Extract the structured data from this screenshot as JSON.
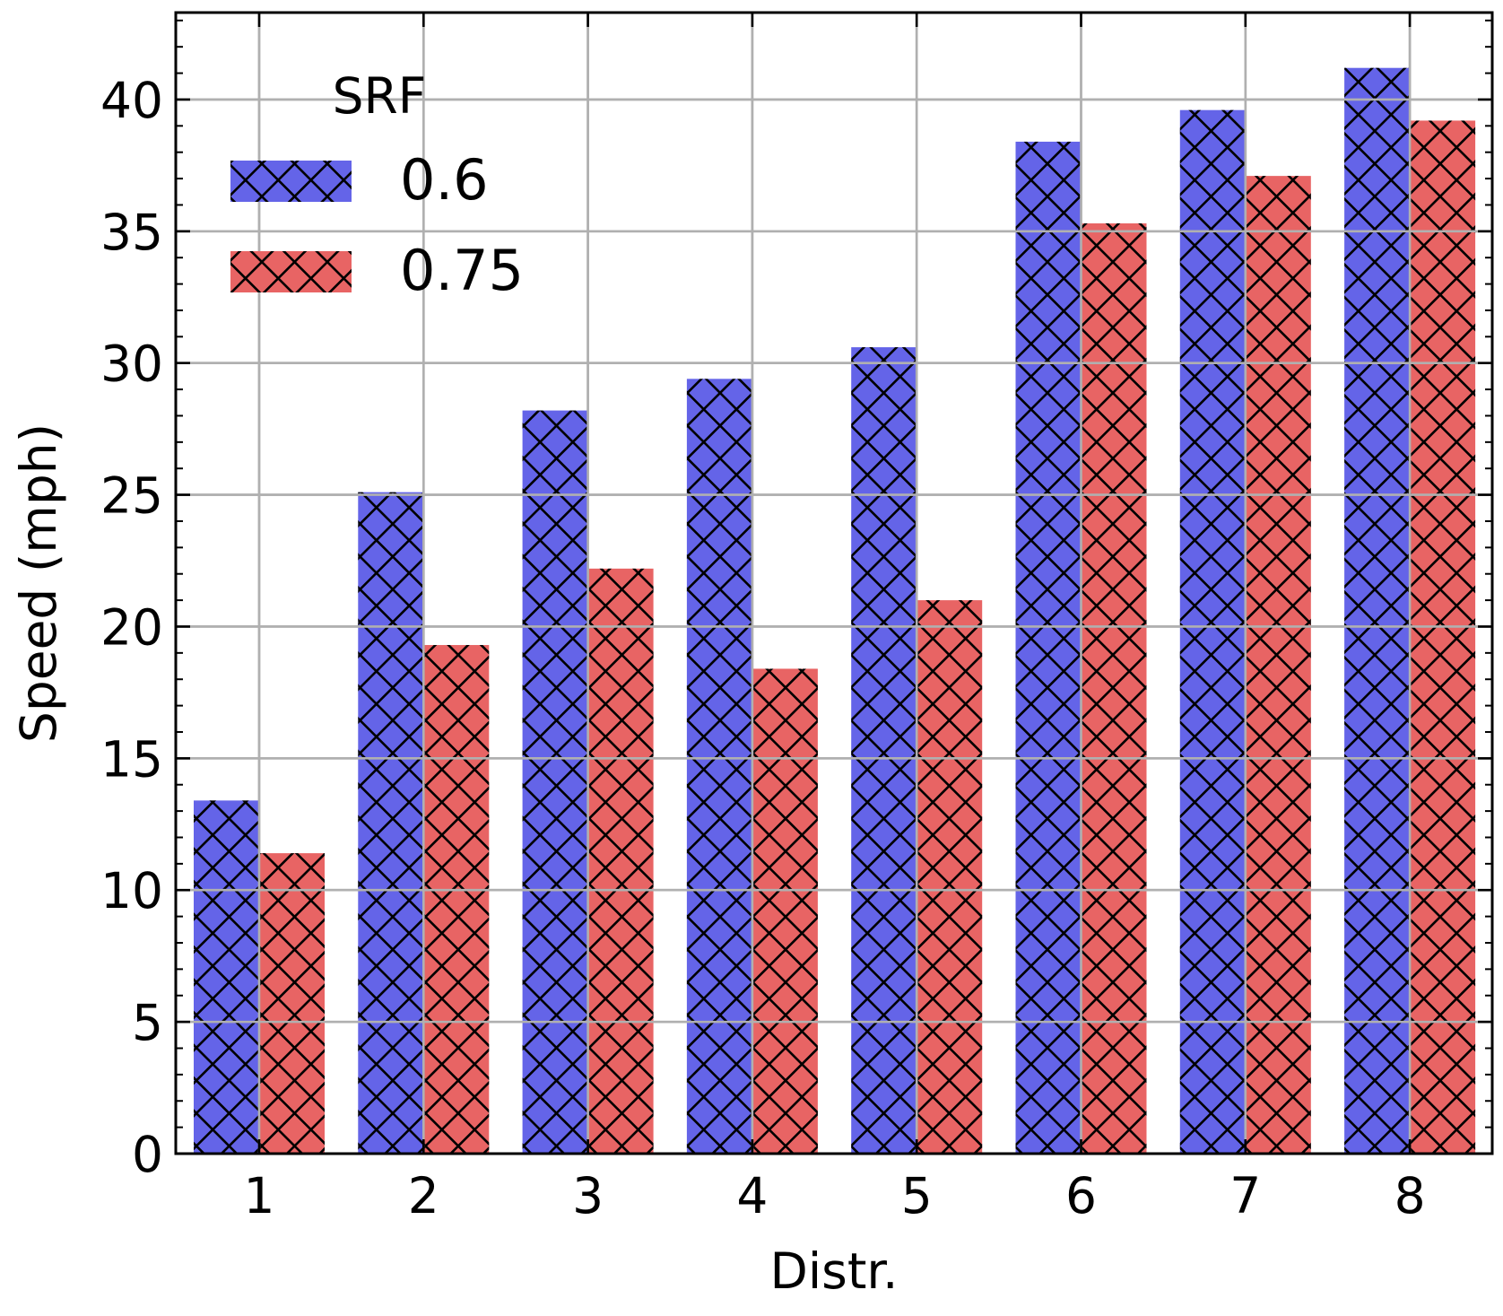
{
  "chart_data": {
    "type": "bar",
    "title": "",
    "xlabel": "Distr.",
    "ylabel": "Speed (mph)",
    "categories": [
      "1",
      "2",
      "3",
      "4",
      "5",
      "6",
      "7",
      "8"
    ],
    "series": [
      {
        "name": "0.6",
        "color": "#6464e8",
        "hatch": "cross",
        "values": [
          13.4,
          25.1,
          28.2,
          29.4,
          30.6,
          38.4,
          39.6,
          41.2
        ]
      },
      {
        "name": "0.75",
        "color": "#e86464",
        "hatch": "cross",
        "values": [
          11.4,
          19.3,
          22.2,
          18.4,
          21.0,
          35.3,
          37.1,
          39.2
        ]
      }
    ],
    "ylim": [
      0,
      43.3
    ],
    "yticks": [
      "0",
      "5",
      "10",
      "15",
      "20",
      "25",
      "30",
      "35",
      "40"
    ],
    "grid": true,
    "legend": {
      "title": "SRF",
      "placement": "top-left"
    }
  }
}
